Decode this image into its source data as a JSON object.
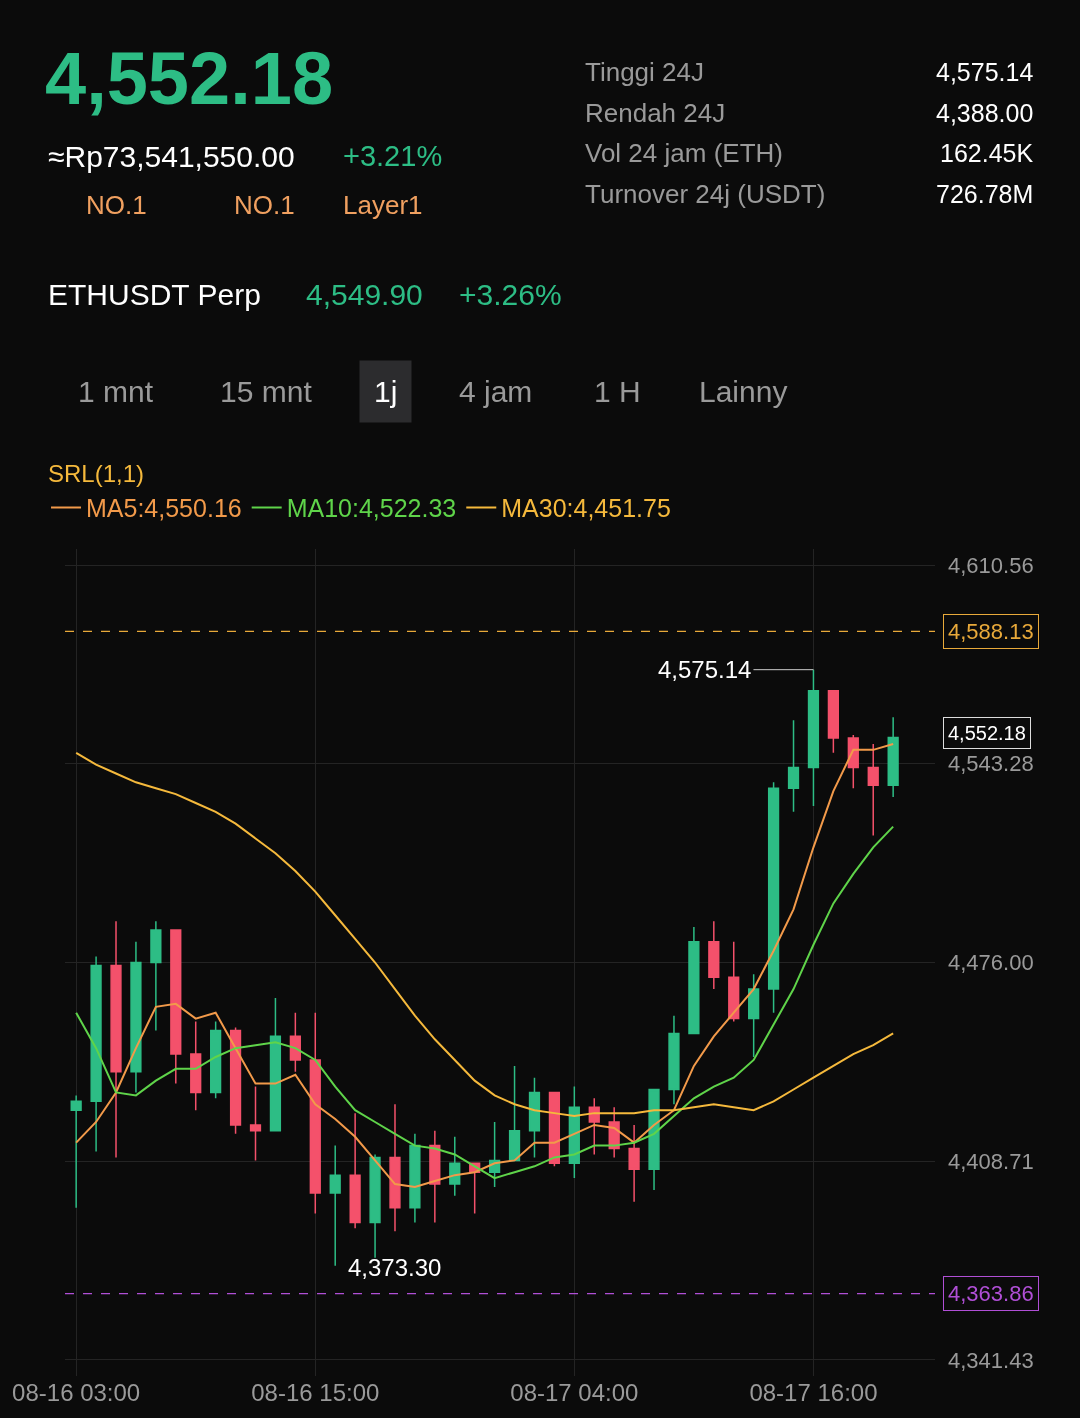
{
  "chart_data": {
    "type": "candlestick",
    "title": "4,552.18",
    "annotations": [
      "≈Rp73,541,550.00",
      "+3.21%",
      "NO.1",
      "NO.1",
      "Layer1",
      "Tinggi 24J",
      "4,575.14",
      "Rendah 24J",
      "4,388.00",
      "Vol 24 jam (ETH)",
      "162.45K",
      "Turnover 24j (USDT)",
      "726.78M",
      "ETHUSDT Perp",
      "4,549.90",
      "+3.26%",
      "1 mnt",
      "15 mnt",
      "1j",
      "4 jam",
      "1 H",
      "Lainny",
      "SRL(1,1)",
      {
        "text": "4,575.14",
        "x": "08-17 16:00",
        "y": 4575.14
      },
      "4,373.30",
      "4,552.18"
    ],
    "categories": [
      "08-16 03:00",
      null,
      null,
      null,
      null,
      null,
      null,
      null,
      null,
      null,
      null,
      null,
      "08-16 15:00",
      null,
      null,
      null,
      null,
      null,
      null,
      null,
      null,
      null,
      null,
      null,
      null,
      "08-17 04:00",
      null,
      null,
      null,
      null,
      null,
      null,
      null,
      null,
      null,
      null,
      null,
      "08-17 16:00",
      null,
      null,
      null,
      null
    ],
    "ohlc": [
      [
        4426,
        4431,
        4393,
        4429
      ],
      [
        4429,
        4478,
        4412,
        4475
      ],
      [
        4475,
        4490,
        4410,
        4439
      ],
      [
        4439,
        4483,
        4432,
        4476
      ],
      [
        4476,
        4490,
        4453,
        4487
      ],
      [
        4487,
        4487,
        4435,
        4445
      ],
      [
        4445,
        4456,
        4426,
        4432
      ],
      [
        4432,
        4456,
        4430,
        4453
      ],
      [
        4453,
        4454,
        4418,
        4421
      ],
      [
        4421,
        4434,
        4409,
        4419
      ],
      [
        4419,
        4464,
        4419,
        4451
      ],
      [
        4451,
        4459,
        4439,
        4443
      ],
      [
        4443,
        4459,
        4391,
        4398
      ],
      [
        4398,
        4414,
        4373.3,
        4404
      ],
      [
        4404,
        4425,
        4386,
        4388
      ],
      [
        4388,
        4411,
        4376,
        4410
      ],
      [
        4410,
        4428,
        4385,
        4393
      ],
      [
        4393,
        4418,
        4388,
        4414
      ],
      [
        4414,
        4419,
        4388,
        4401
      ],
      [
        4401,
        4417,
        4397,
        4408
      ],
      [
        4408,
        4408,
        4391,
        4405
      ],
      [
        4405,
        4422,
        4400,
        4409
      ],
      [
        4409,
        4441,
        4409,
        4419
      ],
      [
        4419,
        4437,
        4410,
        4432
      ],
      [
        4432,
        4432,
        4407,
        4408
      ],
      [
        4408,
        4434,
        4403,
        4427
      ],
      [
        4427,
        4430,
        4411,
        4422
      ],
      [
        4422,
        4427,
        4410,
        4413
      ],
      [
        4413,
        4421,
        4395,
        4406
      ],
      [
        4406,
        4433,
        4399,
        4433
      ],
      [
        4433,
        4458,
        4428,
        4452
      ],
      [
        4452,
        4488,
        4452,
        4483
      ],
      [
        4483,
        4490,
        4467,
        4471
      ],
      [
        4471,
        4483,
        4456,
        4457
      ],
      [
        4457,
        4472,
        4444,
        4467
      ],
      [
        4467,
        4537,
        4459,
        4535
      ],
      [
        4535,
        4558,
        4527,
        4542
      ],
      [
        4542,
        4575.14,
        4529,
        4568
      ],
      [
        4568,
        4568,
        4547,
        4552
      ],
      [
        4552,
        4553,
        4535,
        4542
      ],
      [
        4542,
        4550,
        4519,
        4536
      ],
      [
        4536,
        4559,
        4532,
        4552.18
      ]
    ],
    "series": [
      {
        "name": "MA5:4,550.16",
        "type": "line",
        "color": "#f29a4a",
        "values": [
          4415,
          4422,
          4432,
          4447,
          4461,
          4462,
          4457,
          4459,
          4447,
          4435,
          4435,
          4438,
          4428,
          4423,
          4417,
          4409,
          4401,
          4400,
          4402,
          4404,
          4405,
          4408,
          4409,
          4415,
          4415,
          4418,
          4421,
          4420,
          4415,
          4421,
          4426,
          4441,
          4451,
          4459,
          4467,
          4480,
          4494,
          4515,
          4534,
          4548,
          4548,
          4550
        ]
      },
      {
        "name": "MA10:4,522.33",
        "type": "line",
        "color": "#5fd44a",
        "values": [
          4459,
          4447,
          4432,
          4431,
          4436,
          4440,
          4440,
          4444,
          4447,
          4448,
          4449,
          4447,
          4443,
          4434,
          4426,
          4422,
          4418,
          4414,
          4413,
          4411,
          4407,
          4403,
          4405,
          4407,
          4410,
          4411,
          4414,
          4414,
          4415,
          4418,
          4424,
          4430,
          4434,
          4437,
          4443,
          4455,
          4467,
          4482,
          4496,
          4506,
          4515,
          4522
        ]
      },
      {
        "name": "MA30:4,451.75",
        "type": "line",
        "color": "#f5b93c",
        "values": [
          4547,
          4543,
          4540,
          4537,
          4535,
          4533,
          4530,
          4527,
          4523,
          4518,
          4513,
          4507,
          4500,
          4492,
          4484,
          4476,
          4467,
          4458,
          4450,
          4443,
          4436,
          4431,
          4428,
          4426,
          4425,
          4424,
          4425,
          4425,
          4425,
          4426,
          4426,
          4427,
          4428,
          4427,
          4426,
          4429,
          4433,
          4437,
          4441,
          4445,
          4448,
          4452
        ]
      }
    ],
    "ylim": [
      4336,
      4616
    ],
    "yticks": [
      {
        "value": 4610.56,
        "label": "4,610.56"
      },
      {
        "value": 4543.28,
        "label": "4,543.28"
      },
      {
        "value": 4476.0,
        "label": "4,476.00"
      },
      {
        "value": 4408.71,
        "label": "4,408.71"
      },
      {
        "value": 4341.43,
        "label": "4,341.43"
      }
    ],
    "ref_lines": [
      {
        "axis": "y",
        "value": 4588.13,
        "label": "4,588.13",
        "color": "#e8a93a",
        "line_style": "dashed"
      },
      {
        "axis": "y",
        "value": 4363.86,
        "label": "4,363.86",
        "color": "#b04fd6",
        "line_style": "dashed"
      }
    ],
    "grid": true,
    "legend": "top left"
  }
}
